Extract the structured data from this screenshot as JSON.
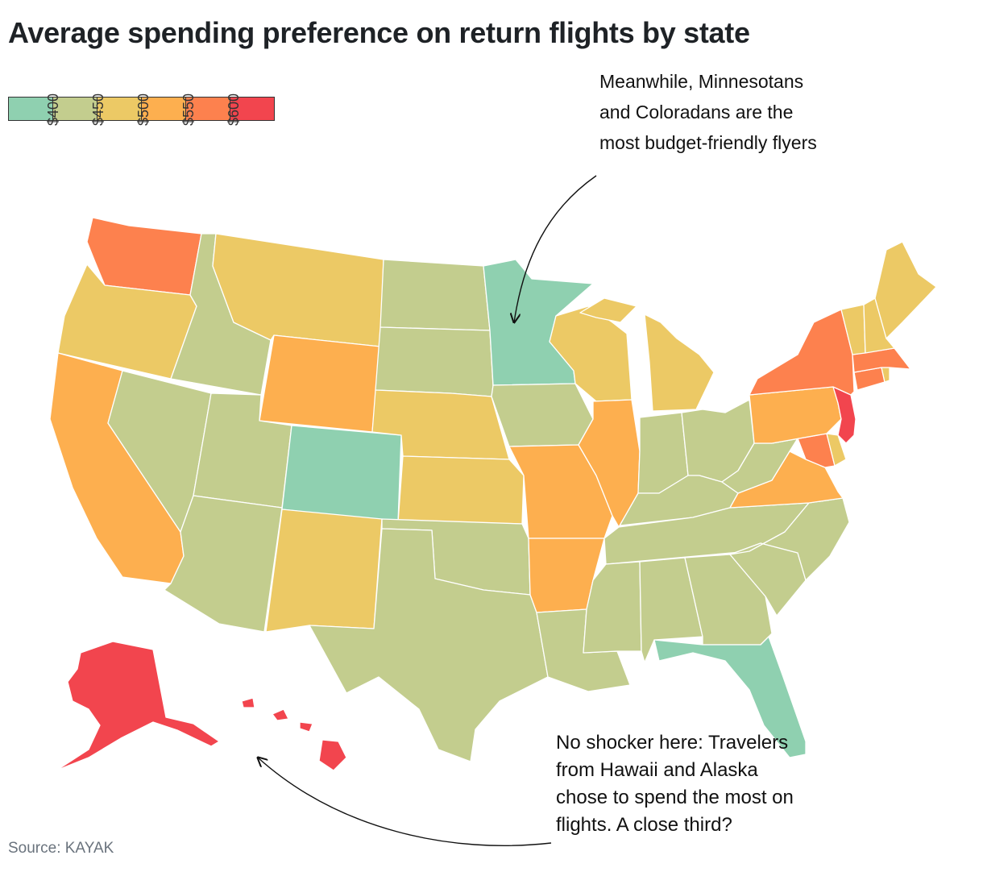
{
  "title": "Average spending preference on return flights by state",
  "legend": {
    "bins": [
      {
        "color": "#8fd0b0",
        "label": "$400"
      },
      {
        "color": "#c3cd8e",
        "label": "$450"
      },
      {
        "color": "#ecc965",
        "label": "$500"
      },
      {
        "color": "#fdaf4f",
        "label": "$550"
      },
      {
        "color": "#fd814e",
        "label": "$600"
      },
      {
        "color": "#f2454e",
        "label": ""
      }
    ]
  },
  "annotations": {
    "top": "Meanwhile, Minnesotans and Coloradans are the most budget-friendly flyers",
    "bottom": "No shocker here: Travelers from Hawaii and Alaska chose to spend the most on flights. A close third?"
  },
  "source": "Source: KAYAK",
  "states": {
    "washington": {
      "name": "Washington",
      "color": "#fd814e"
    },
    "oregon": {
      "name": "Oregon",
      "color": "#ecc965"
    },
    "california": {
      "name": "California",
      "color": "#fdaf4f"
    },
    "nevada": {
      "name": "Nevada",
      "color": "#c3cd8e"
    },
    "idaho": {
      "name": "Idaho",
      "color": "#c3cd8e"
    },
    "montana": {
      "name": "Montana",
      "color": "#ecc965"
    },
    "wyoming": {
      "name": "Wyoming",
      "color": "#fdaf4f"
    },
    "utah": {
      "name": "Utah",
      "color": "#c3cd8e"
    },
    "arizona": {
      "name": "Arizona",
      "color": "#c3cd8e"
    },
    "colorado": {
      "name": "Colorado",
      "color": "#8fd0b0"
    },
    "new_mexico": {
      "name": "New Mexico",
      "color": "#ecc965"
    },
    "north_dakota": {
      "name": "North Dakota",
      "color": "#c3cd8e"
    },
    "south_dakota": {
      "name": "South Dakota",
      "color": "#c3cd8e"
    },
    "nebraska": {
      "name": "Nebraska",
      "color": "#ecc965"
    },
    "kansas": {
      "name": "Kansas",
      "color": "#ecc965"
    },
    "oklahoma": {
      "name": "Oklahoma",
      "color": "#c3cd8e"
    },
    "texas": {
      "name": "Texas",
      "color": "#c3cd8e"
    },
    "minnesota": {
      "name": "Minnesota",
      "color": "#8fd0b0"
    },
    "iowa": {
      "name": "Iowa",
      "color": "#c3cd8e"
    },
    "missouri": {
      "name": "Missouri",
      "color": "#fdaf4f"
    },
    "arkansas": {
      "name": "Arkansas",
      "color": "#fdaf4f"
    },
    "louisiana": {
      "name": "Louisiana",
      "color": "#c3cd8e"
    },
    "wisconsin": {
      "name": "Wisconsin",
      "color": "#ecc965"
    },
    "illinois": {
      "name": "Illinois",
      "color": "#fdaf4f"
    },
    "michigan": {
      "name": "Michigan",
      "color": "#ecc965"
    },
    "indiana": {
      "name": "Indiana",
      "color": "#c3cd8e"
    },
    "ohio": {
      "name": "Ohio",
      "color": "#c3cd8e"
    },
    "kentucky": {
      "name": "Kentucky",
      "color": "#c3cd8e"
    },
    "tennessee": {
      "name": "Tennessee",
      "color": "#c3cd8e"
    },
    "mississippi": {
      "name": "Mississippi",
      "color": "#c3cd8e"
    },
    "alabama": {
      "name": "Alabama",
      "color": "#c3cd8e"
    },
    "georgia": {
      "name": "Georgia",
      "color": "#c3cd8e"
    },
    "florida": {
      "name": "Florida",
      "color": "#8fd0b0"
    },
    "south_carolina": {
      "name": "South Carolina",
      "color": "#c3cd8e"
    },
    "north_carolina": {
      "name": "North Carolina",
      "color": "#c3cd8e"
    },
    "virginia": {
      "name": "Virginia",
      "color": "#fdaf4f"
    },
    "west_virginia": {
      "name": "West Virginia",
      "color": "#c3cd8e"
    },
    "maryland": {
      "name": "Maryland",
      "color": "#fd814e"
    },
    "delaware": {
      "name": "Delaware",
      "color": "#ecc965"
    },
    "pennsylvania": {
      "name": "Pennsylvania",
      "color": "#fdaf4f"
    },
    "new_jersey": {
      "name": "New Jersey",
      "color": "#f2454e"
    },
    "new_york": {
      "name": "New York",
      "color": "#fd814e"
    },
    "connecticut": {
      "name": "Connecticut",
      "color": "#fd814e"
    },
    "rhode_island": {
      "name": "Rhode Island",
      "color": "#ecc965"
    },
    "massachusetts": {
      "name": "Massachusetts",
      "color": "#fd814e"
    },
    "vermont": {
      "name": "Vermont",
      "color": "#ecc965"
    },
    "new_hampshire": {
      "name": "New Hampshire",
      "color": "#ecc965"
    },
    "maine": {
      "name": "Maine",
      "color": "#ecc965"
    },
    "alaska": {
      "name": "Alaska",
      "color": "#f2454e"
    },
    "hawaii": {
      "name": "Hawaii",
      "color": "#f2454e"
    }
  }
}
